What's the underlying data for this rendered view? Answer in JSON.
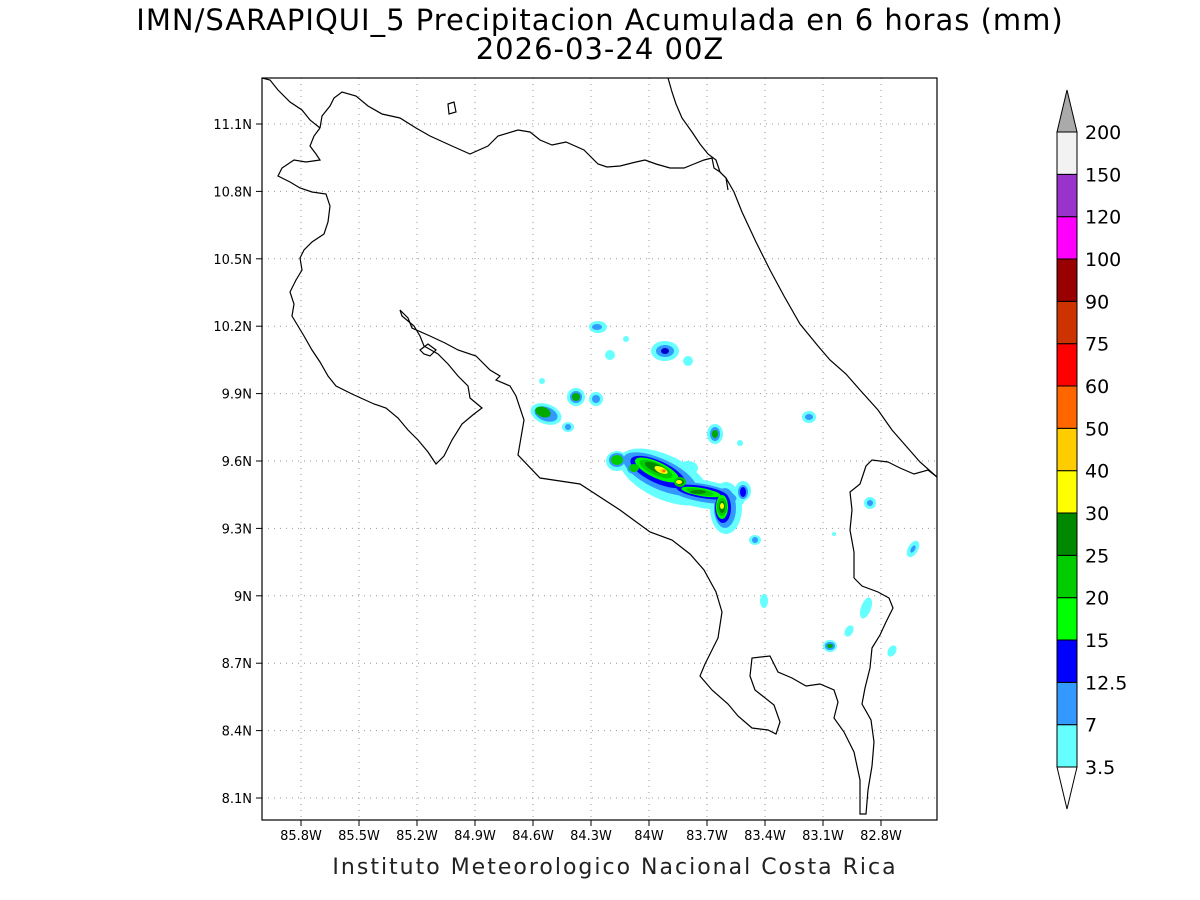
{
  "title": {
    "line1": "IMN/SARAPIQUI_5 Precipitacion Acumulada en 6 horas (mm)",
    "line2": "2026-03-24 00Z"
  },
  "credit": "Instituto Meteorologico Nacional Costa Rica",
  "axes": {
    "lat_labels": [
      "11.1N",
      "10.8N",
      "10.5N",
      "10.2N",
      "9.9N",
      "9.6N",
      "9.3N",
      "9N",
      "8.7N",
      "8.4N",
      "8.1N"
    ],
    "lon_labels": [
      "85.8W",
      "85.5W",
      "85.2W",
      "84.9W",
      "84.6W",
      "84.3W",
      "84W",
      "83.7W",
      "83.4W",
      "83.1W",
      "82.8W"
    ],
    "grid": "dotted"
  },
  "legend": {
    "levels": [
      "3.5",
      "7",
      "12.5",
      "15",
      "20",
      "25",
      "30",
      "40",
      "50",
      "60",
      "75",
      "90",
      "100",
      "120",
      "150",
      "200"
    ],
    "colors": [
      "#66ffff",
      "#3399ff",
      "#0000ff",
      "#00ff00",
      "#00cc00",
      "#008800",
      "#ffff00",
      "#ffcc00",
      "#ff6600",
      "#ff0000",
      "#cc3300",
      "#990000",
      "#ff00ff",
      "#9933cc",
      "#f2f2f2",
      "#aaaaaa"
    ]
  }
}
